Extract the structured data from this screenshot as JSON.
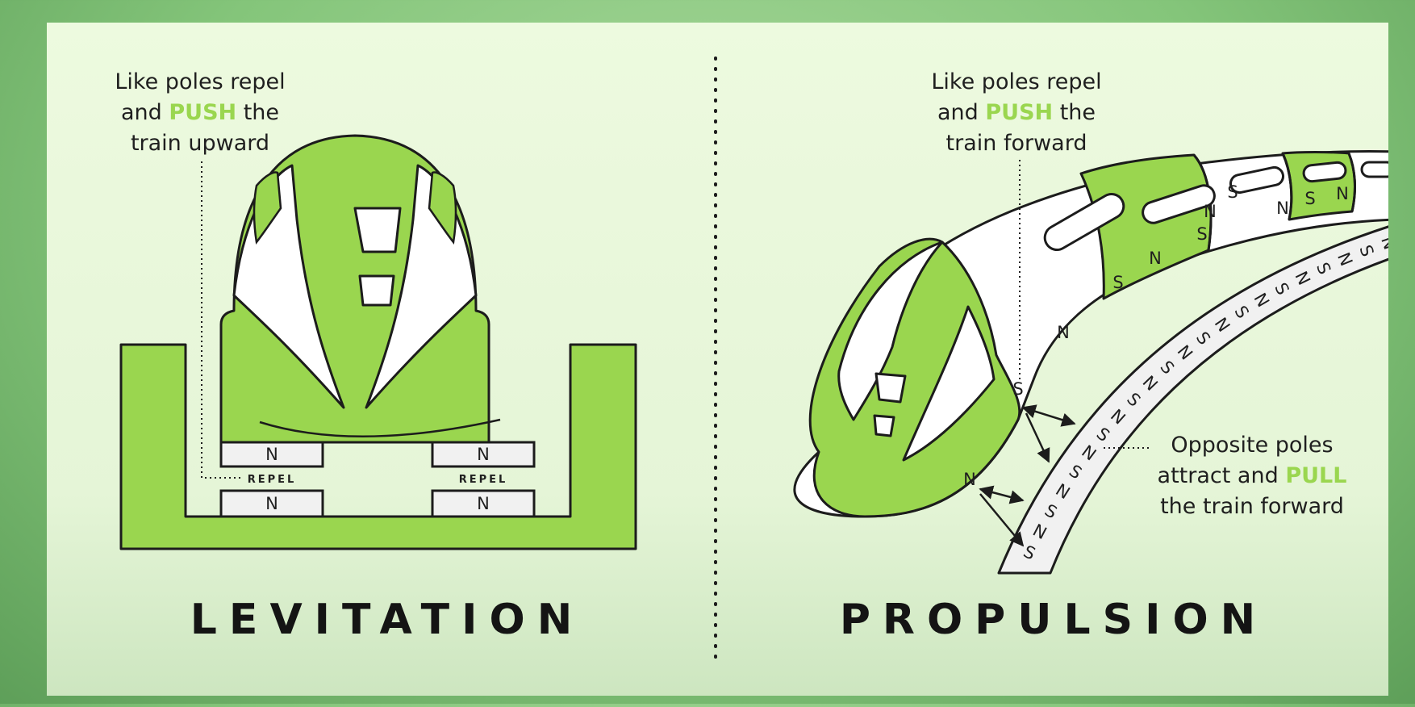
{
  "colors": {
    "accent": "#9ad64f",
    "panel": "#eaf8dc",
    "outline": "#1c1c1c",
    "frame": "#7fbf74"
  },
  "levitation": {
    "caption": {
      "line1": "Like poles repel",
      "line2_pre": "and ",
      "line2_em": "PUSH",
      "line2_post": " the",
      "line3": "train upward"
    },
    "repel_label": "REPEL",
    "pole": "N",
    "title": "LEVITATION"
  },
  "propulsion": {
    "caption_push": {
      "line1": "Like poles repel",
      "line2_pre": "and ",
      "line2_em": "PUSH",
      "line2_post": " the",
      "line3": "train forward"
    },
    "caption_pull": {
      "line1": "Opposite poles",
      "line2_pre": "attract and ",
      "line2_em": "PULL",
      "line3": "the train forward"
    },
    "title": "PROPULSION",
    "track_poles": [
      "S",
      "N",
      "S",
      "N",
      "S",
      "N",
      "S",
      "N",
      "S",
      "N",
      "S",
      "N",
      "S",
      "N",
      "S",
      "N",
      "S",
      "N",
      "S",
      "N",
      "S",
      "N"
    ],
    "train_poles": [
      "S",
      "N",
      "S",
      "N",
      "S",
      "N",
      "S",
      "N"
    ],
    "nose_poles": [
      "N",
      "S",
      "N"
    ]
  }
}
